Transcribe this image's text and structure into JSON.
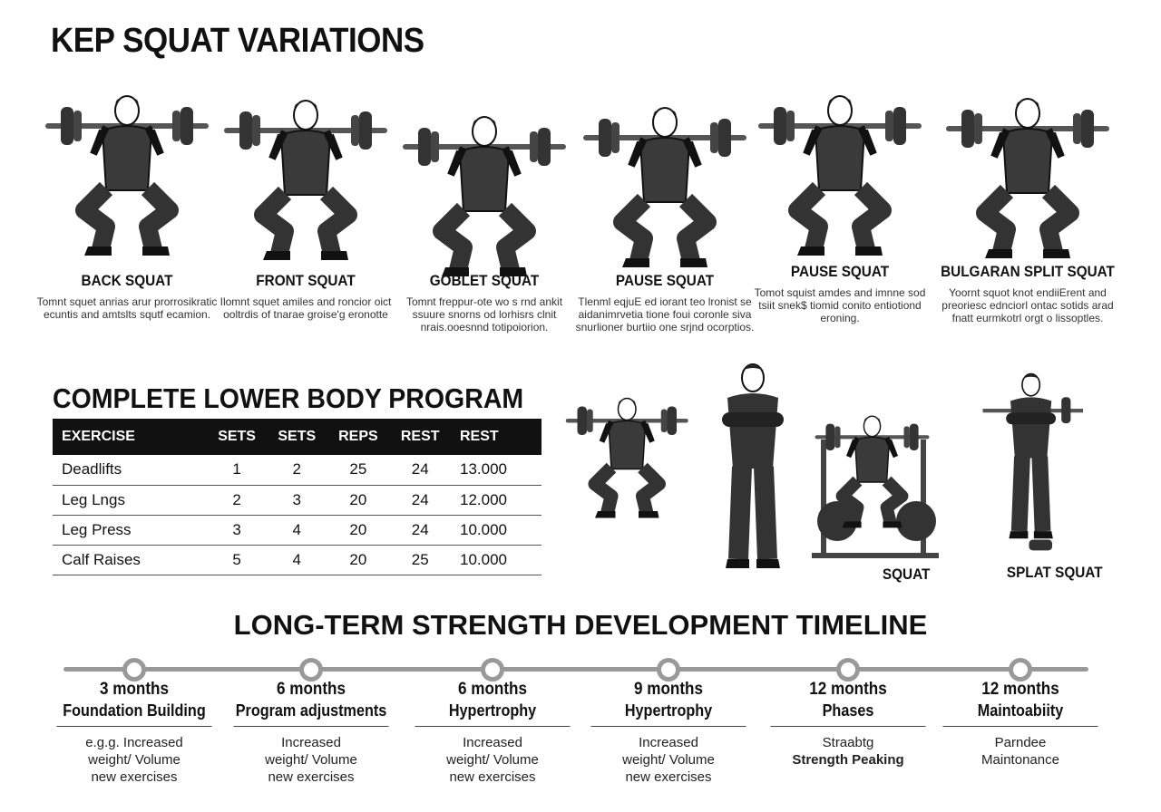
{
  "title": "KEP SQUAT VARIATIONS",
  "variations": [
    {
      "name": "BACK SQUAT",
      "desc": "Tomnt squet anrias arur prorrosikratic ecuntis and amtslts squtf ecamion."
    },
    {
      "name": "FRONT SQUAT",
      "desc": "Ilomnt squet amiles and roncior oict ooltrdis of tnarae groise'g eronotte"
    },
    {
      "name": "GOBLET SQUAT",
      "desc": "Tomnt freppur-ote wo s rnd ankit ssuure snorns od lorhisrs clnit nrais.ooesnnd totipoiorion."
    },
    {
      "name": "PAUSE SQUAT",
      "desc": "Tlenml eqjuE ed iorant teo lronist se aidanimrvetia tione foui coronle siva snurlioner burtiio one srjnd ocorptios."
    },
    {
      "name": "PAUSE SQUAT",
      "desc": "Tomot squist amdes and imnne sod tsiit snek$ tiomid conito entiotiond eroning."
    },
    {
      "name": "BULGARAN SPLIT SQUAT",
      "desc": "Yoornt squot knot endiiErent and preoriesc ednciorl ontac sotids arad fnatt eurmkotrl orgt o lissoptles."
    }
  ],
  "program": {
    "title": "COMPLETE LOWER BODY PROGRAM",
    "headers": [
      "EXERCISE",
      "SETS",
      "SETS",
      "REPS",
      "REST",
      "REST"
    ],
    "rows": [
      [
        "Deadlifts",
        "1",
        "2",
        "25",
        "24",
        "13.000"
      ],
      [
        "Leg Lngs",
        "2",
        "3",
        "20",
        "24",
        "12.000"
      ],
      [
        "Leg Press",
        "3",
        "4",
        "20",
        "24",
        "10.000"
      ],
      [
        "Calf Raises",
        "5",
        "4",
        "20",
        "25",
        "10.000"
      ]
    ]
  },
  "side_labels": [
    "SQUAT",
    "SPLAT SQUAT"
  ],
  "timeline": {
    "title": "LONG-TERM STRENGTH DEVELOPMENT TIMELINE",
    "steps": [
      {
        "duration": "3 months",
        "phase": "Foundation Building",
        "lines": [
          "e.g.g. Increased",
          "weight/ Volume",
          "new exercises"
        ]
      },
      {
        "duration": "6 months",
        "phase": "Program adjustments",
        "lines": [
          "Increased",
          "weight/ Volume",
          "new exercises"
        ]
      },
      {
        "duration": "6 months",
        "phase": "Hypertrophy",
        "lines": [
          "Increased",
          "weight/ Volume",
          "new exercises"
        ]
      },
      {
        "duration": "9 months",
        "phase": "Hypertrophy",
        "lines": [
          "Increased",
          "weight/ Volume",
          "new exercises"
        ]
      },
      {
        "duration": "12 months",
        "phase": "Phases",
        "lines": [
          "Straabtg",
          "Strength Peaking"
        ]
      },
      {
        "duration": "12 months",
        "phase": "Maintoabiity",
        "lines": [
          "Parndee",
          "Maintonance"
        ]
      }
    ]
  },
  "colors": {
    "ink": "#111111",
    "timeline": "#999999",
    "header_bg": "#111111"
  }
}
